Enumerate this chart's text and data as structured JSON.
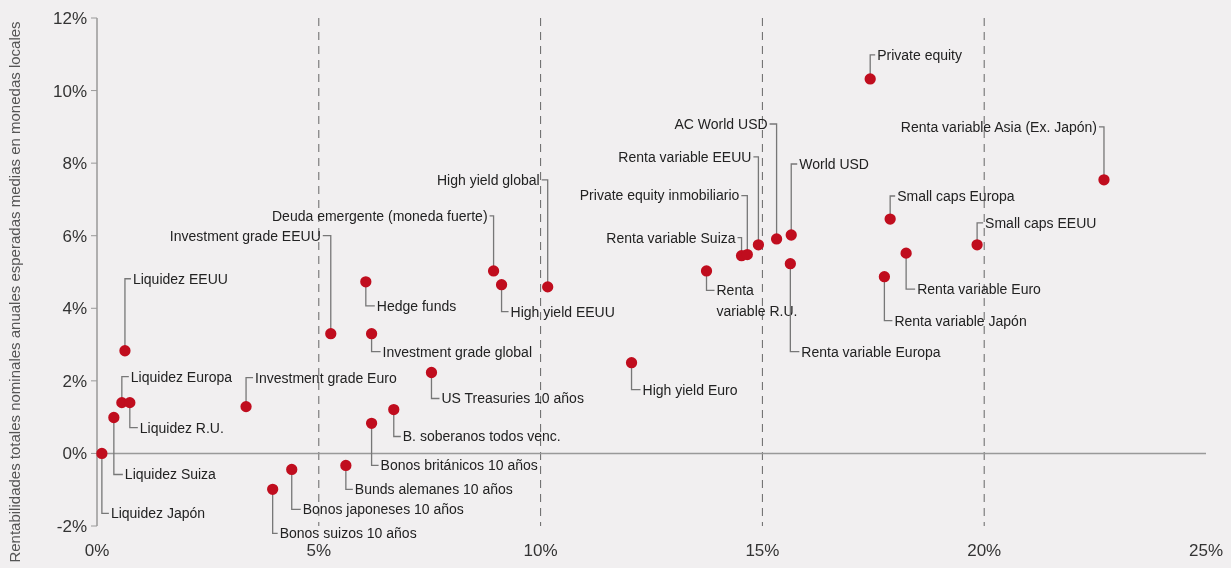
{
  "chart_data": {
    "type": "scatter",
    "ylabel": "Rentabilidades totales nominales anuales esperadas medias en monedas locales",
    "xlim": [
      0,
      25
    ],
    "xticks": [
      {
        "value": 0,
        "label": "0%"
      },
      {
        "value": 5,
        "label": "5%"
      },
      {
        "value": 10,
        "label": "10%"
      },
      {
        "value": 15,
        "label": "15%"
      },
      {
        "value": 20,
        "label": "20%"
      },
      {
        "value": 25,
        "label": "25%"
      }
    ],
    "ylim": [
      -2,
      12
    ],
    "yticks": [
      {
        "value": -2,
        "label": "-2%"
      },
      {
        "value": 0,
        "label": "0%"
      },
      {
        "value": 2,
        "label": "2%"
      },
      {
        "value": 4,
        "label": "4%"
      },
      {
        "value": 6,
        "label": "6%"
      },
      {
        "value": 8,
        "label": "8%"
      },
      {
        "value": 10,
        "label": "10%"
      },
      {
        "value": 12,
        "label": "12%"
      }
    ],
    "grid": "x",
    "marker": "circle",
    "series": [
      {
        "color": "#c00d1e",
        "x": [
          0.11,
          0.38,
          0.56,
          0.74,
          0.63,
          3.36,
          3.96,
          4.39,
          5.61,
          6.19,
          6.69,
          7.54,
          5.27,
          6.06,
          6.19,
          8.94,
          10.16,
          9.12,
          12.05,
          13.74,
          14.53,
          14.66,
          14.91,
          15.32,
          15.65,
          15.63,
          17.43,
          17.75,
          17.88,
          18.24,
          19.84,
          22.7
        ],
        "values": [
          0,
          0.99,
          1.4,
          1.4,
          2.83,
          1.29,
          -0.99,
          -0.44,
          -0.33,
          0.83,
          1.21,
          2.23,
          3.3,
          4.73,
          3.3,
          5.03,
          4.59,
          4.65,
          2.5,
          5.03,
          5.45,
          5.48,
          5.75,
          5.91,
          6.02,
          5.23,
          10.32,
          4.87,
          6.46,
          5.52,
          5.75,
          7.54
        ]
      }
    ],
    "annotations": [
      {
        "text": "Liquidez Japón",
        "x": 0.11,
        "y": 0
      },
      {
        "text": "Liquidez Suiza",
        "x": 0.38,
        "y": 0.99
      },
      {
        "text": "Liquidez Europa",
        "x": 0.56,
        "y": 1.4
      },
      {
        "text": "Liquidez R.U.",
        "x": 0.74,
        "y": 1.4
      },
      {
        "text": "Liquidez EEUU",
        "x": 0.63,
        "y": 2.83
      },
      {
        "text": "Investment grade Euro",
        "x": 3.36,
        "y": 1.29
      },
      {
        "text": "Bonos suizos 10 años",
        "x": 3.96,
        "y": -0.99
      },
      {
        "text": "Bonos japoneses 10 años",
        "x": 4.39,
        "y": -0.44
      },
      {
        "text": "Bunds alemanes 10 años",
        "x": 5.61,
        "y": -0.33
      },
      {
        "text": "Bonos británicos 10 años",
        "x": 6.19,
        "y": 0.83
      },
      {
        "text": "B. soberanos todos venc.",
        "x": 6.69,
        "y": 1.21
      },
      {
        "text": "US Treasuries 10 años",
        "x": 7.54,
        "y": 2.23
      },
      {
        "text": "Investment grade EEUU",
        "x": 5.27,
        "y": 3.3
      },
      {
        "text": "Hedge funds",
        "x": 6.06,
        "y": 4.73
      },
      {
        "text": "Investment grade global",
        "x": 6.19,
        "y": 3.3
      },
      {
        "text": "Deuda emergente (moneda fuerte)",
        "x": 8.94,
        "y": 5.03
      },
      {
        "text": "High yield global",
        "x": 10.16,
        "y": 4.59
      },
      {
        "text": "High yield EEUU",
        "x": 9.12,
        "y": 4.65
      },
      {
        "text": "High yield Euro",
        "x": 12.05,
        "y": 2.5
      },
      {
        "text": "Renta variable R.U.",
        "x": 13.74,
        "y": 5.03
      },
      {
        "text": "Renta variable Suiza",
        "x": 14.53,
        "y": 5.45
      },
      {
        "text": "Private equity inmobiliario",
        "x": 14.66,
        "y": 5.48
      },
      {
        "text": "Renta variable EEUU",
        "x": 14.91,
        "y": 5.75
      },
      {
        "text": "AC World USD",
        "x": 15.32,
        "y": 5.91
      },
      {
        "text": "World USD",
        "x": 15.65,
        "y": 6.02
      },
      {
        "text": "Renta variable Europa",
        "x": 15.63,
        "y": 5.23
      },
      {
        "text": "Private equity",
        "x": 17.43,
        "y": 10.32
      },
      {
        "text": "Renta variable Japón",
        "x": 17.75,
        "y": 4.87
      },
      {
        "text": "Small caps Europa",
        "x": 17.88,
        "y": 6.46
      },
      {
        "text": "Renta variable Euro",
        "x": 18.24,
        "y": 5.52
      },
      {
        "text": "Small caps EEUU",
        "x": 19.84,
        "y": 5.75
      },
      {
        "text": "Renta variable Asia (Ex. Japón)",
        "x": 22.7,
        "y": 7.54
      }
    ]
  }
}
